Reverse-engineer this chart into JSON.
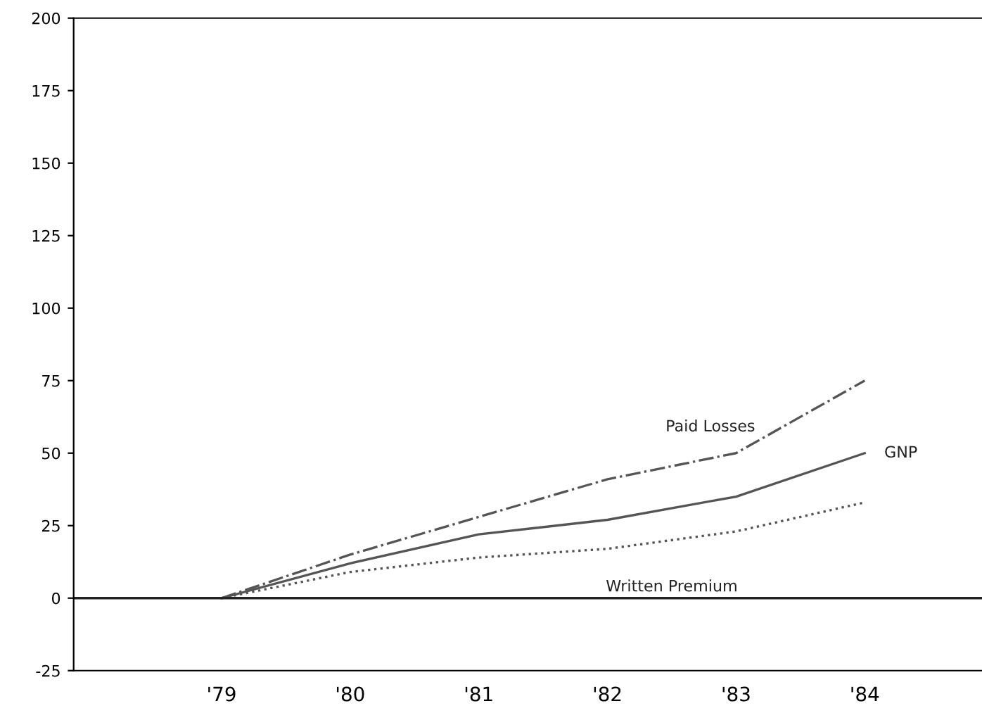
{
  "chart_data": {
    "type": "line",
    "categories": [
      "'79",
      "'80",
      "'81",
      "'82",
      "'83",
      "'84"
    ],
    "series": [
      {
        "name": "Paid Losses",
        "color": "#555555",
        "line_style": "dashdot",
        "values": [
          0,
          15,
          28,
          41,
          50,
          75
        ]
      },
      {
        "name": "GNP",
        "color": "#555555",
        "line_style": "solid",
        "values": [
          0,
          12,
          22,
          27,
          35,
          50
        ]
      },
      {
        "name": "Written Premium",
        "color": "#555555",
        "line_style": "dotted",
        "values": [
          0,
          9,
          14,
          17,
          23,
          33
        ]
      }
    ],
    "ylim": [
      -25,
      200
    ],
    "yticks": [
      -25,
      0,
      25,
      50,
      75,
      100,
      125,
      150,
      175,
      200
    ],
    "ref_lines": [
      {
        "axis": "y",
        "value": 0,
        "color": "#222222"
      }
    ],
    "grid": false,
    "legend": false,
    "marker": "none"
  }
}
